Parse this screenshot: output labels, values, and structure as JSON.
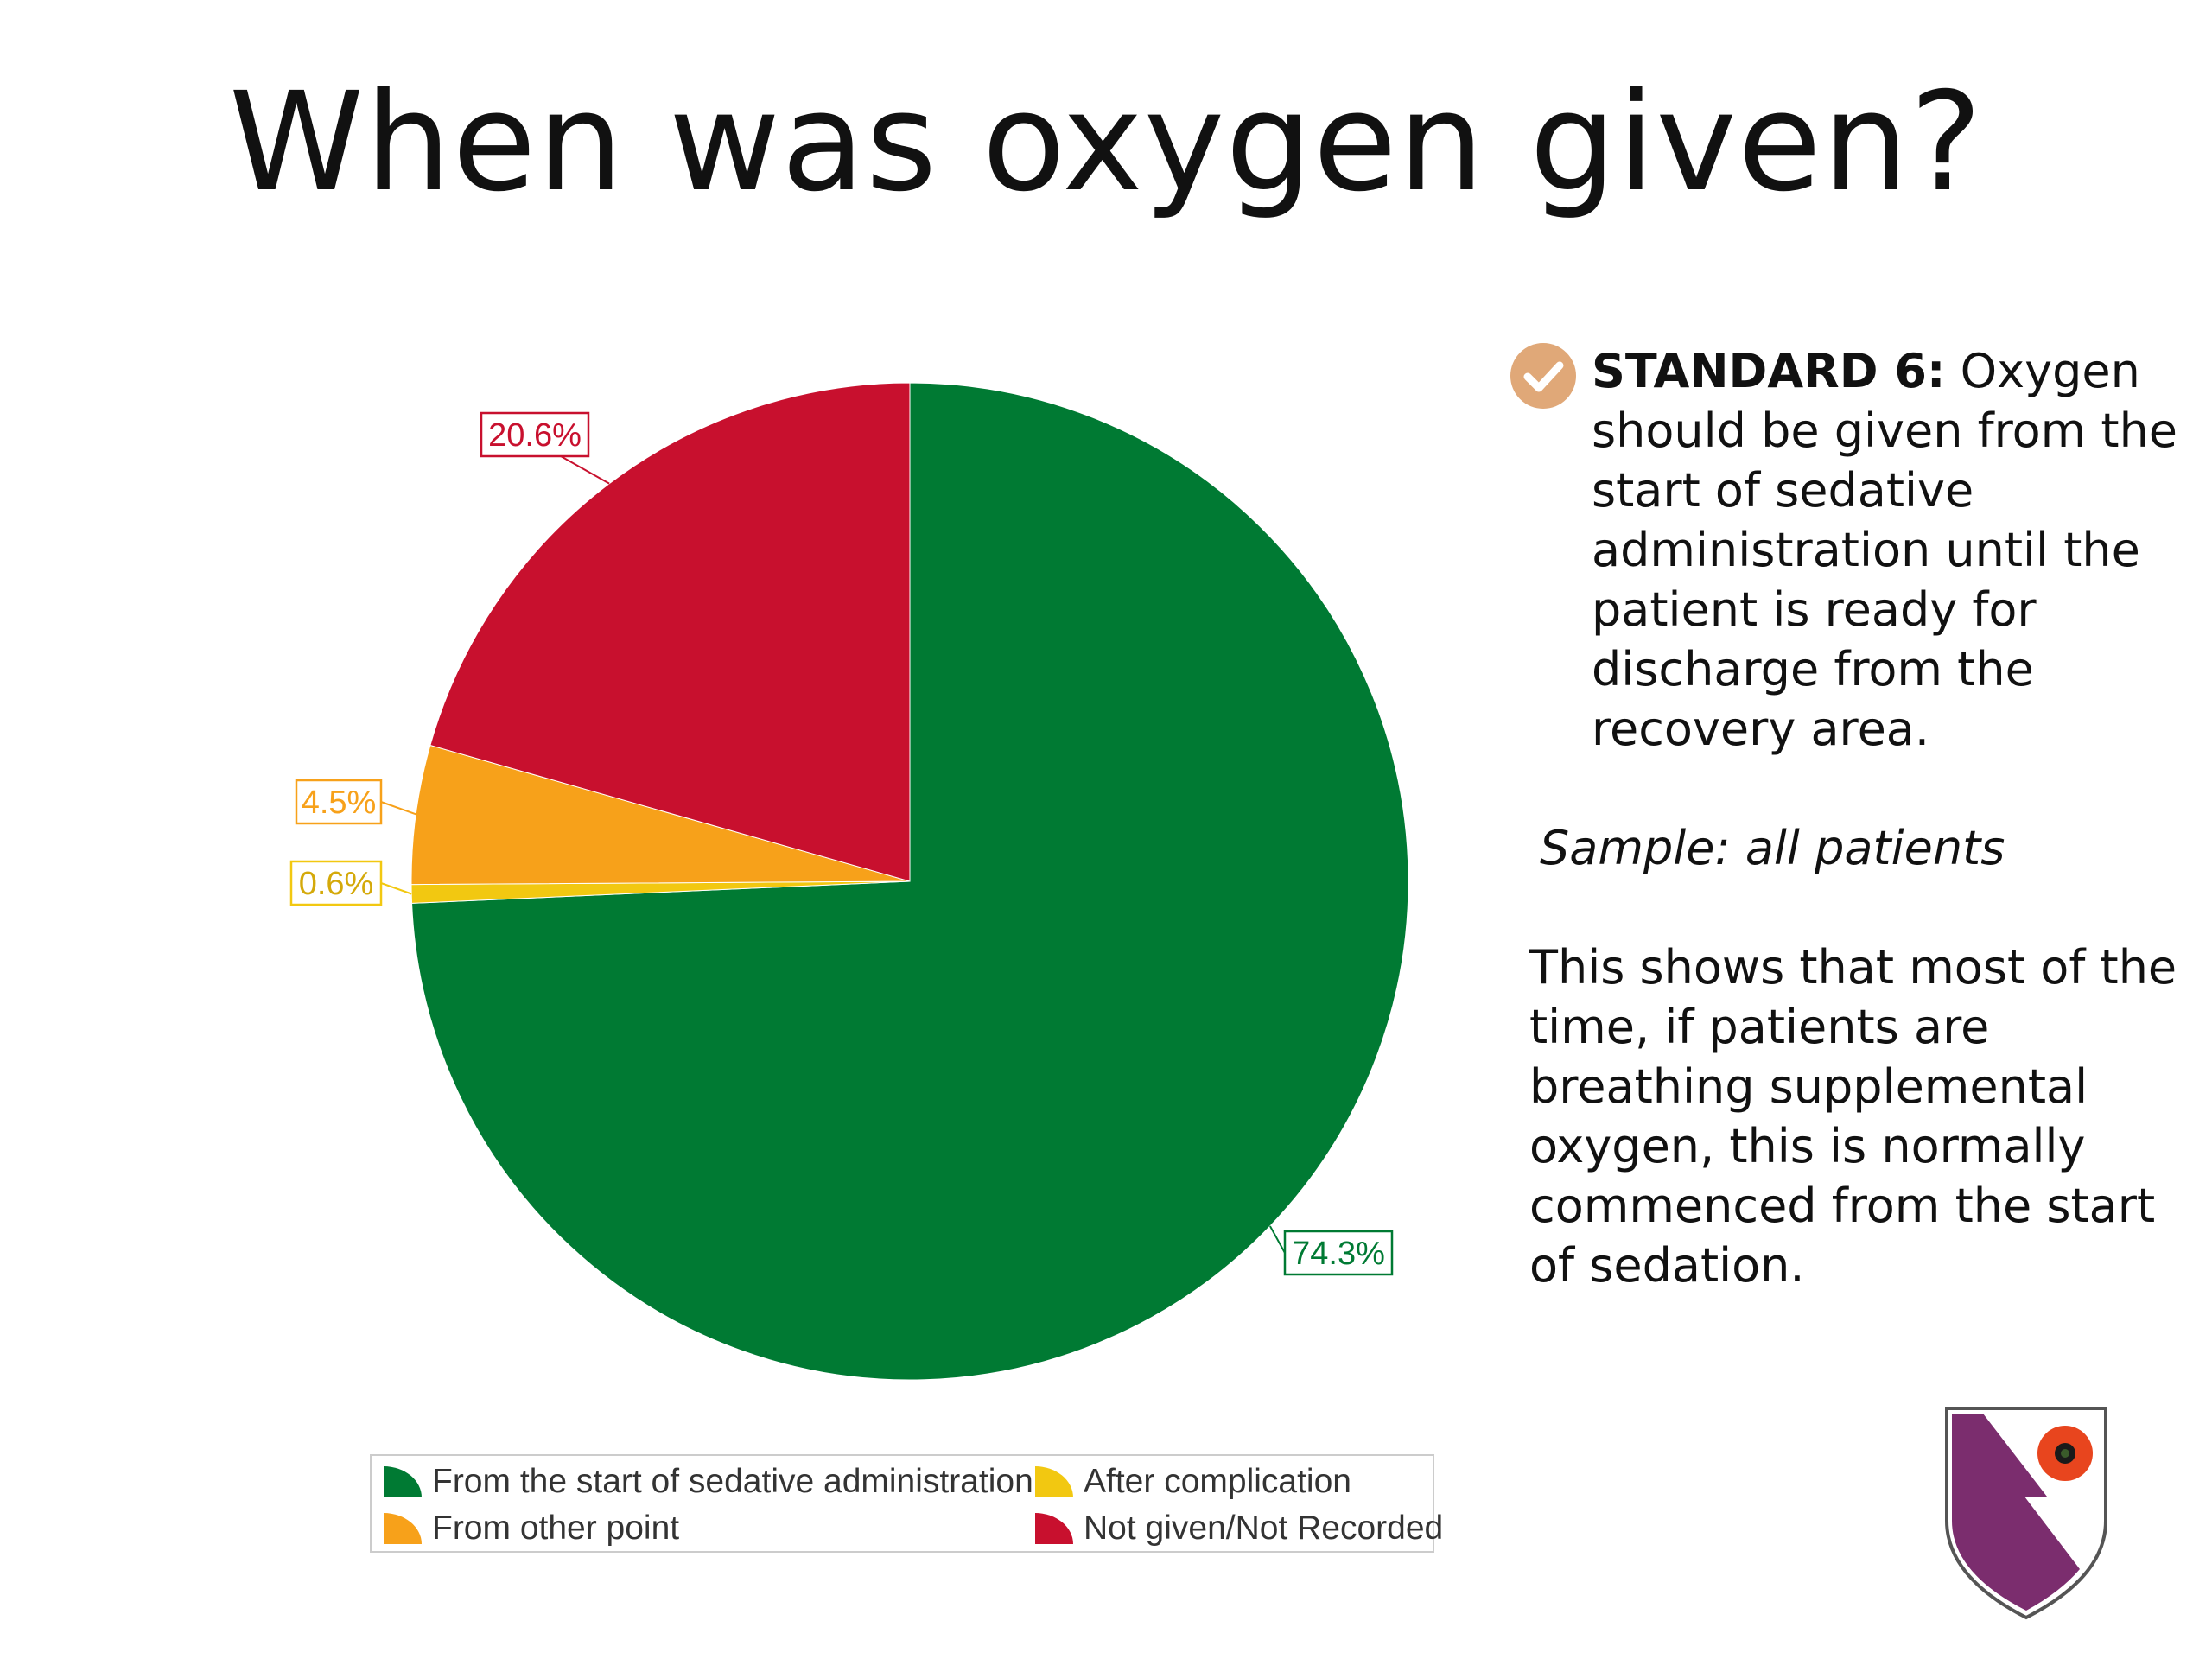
{
  "title": "When was oxygen given?",
  "chart_data": {
    "type": "pie",
    "title": "",
    "slices": [
      {
        "name": "From the start of sedative administration",
        "value": 74.3,
        "label": "74.3%",
        "color": "#007A33"
      },
      {
        "name": "After complication",
        "value": 0.6,
        "label": "0.6%",
        "color": "#F2C811"
      },
      {
        "name": "From other point",
        "value": 4.5,
        "label": "4.5%",
        "color": "#F7A11A"
      },
      {
        "name": "Not given/Not Recorded",
        "value": 20.6,
        "label": "20.6%",
        "color": "#C8102E"
      }
    ],
    "legend_position": "bottom"
  },
  "legend": {
    "items": [
      {
        "label": "From the start of sedative administration",
        "color": "#007A33"
      },
      {
        "label": "After complication",
        "color": "#F2C811"
      },
      {
        "label": "From other point",
        "color": "#F7A11A"
      },
      {
        "label": "Not given/Not Recorded",
        "color": "#C8102E"
      }
    ]
  },
  "panel": {
    "standard_label": "STANDARD 6:",
    "standard_text": " Oxygen should be given from the start of sedative administration until the patient is ready for discharge from the recovery area.",
    "sample": "Sample: all patients",
    "summary": "This shows that most of the time, if patients are breathing supplemental oxygen, this is normally commenced from the start of sedation.",
    "icon": "check-circle-icon",
    "icon_color": "#E0A878"
  },
  "crest": {
    "icon": "shield-crest-icon",
    "colors": {
      "purple": "#7B2D6E",
      "poppy": "#E8451E"
    }
  }
}
